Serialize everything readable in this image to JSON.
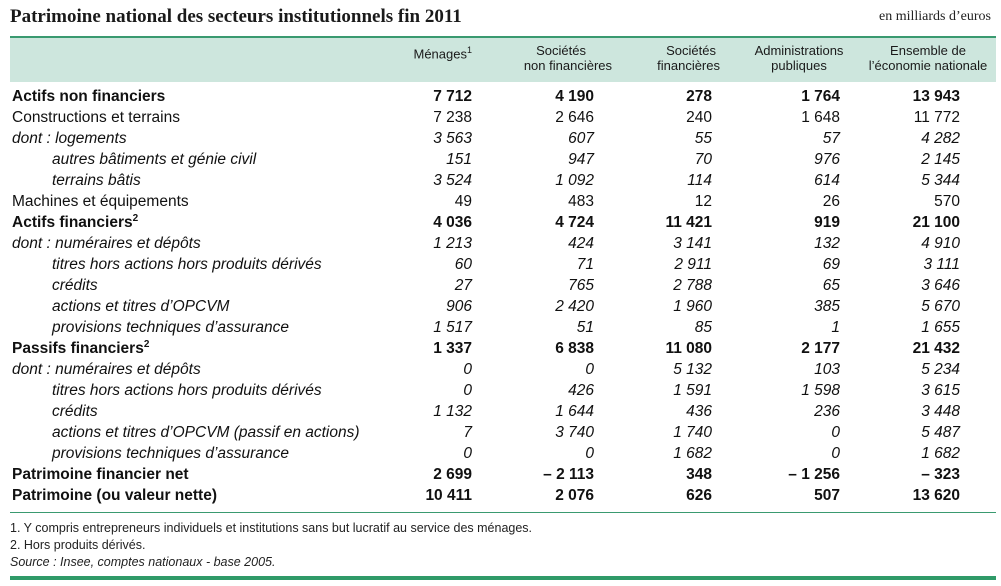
{
  "title": "Patrimoine national des secteurs institutionnels fin 2011",
  "unit": "en milliards d’euros",
  "columns": [
    {
      "l1": "Ménages",
      "sup": "1",
      "l2": ""
    },
    {
      "l1": "Sociétés",
      "sup": "",
      "l2": "non financières"
    },
    {
      "l1": "Sociétés",
      "sup": "",
      "l2": "financières"
    },
    {
      "l1": "Administrations",
      "sup": "",
      "l2": "publiques"
    },
    {
      "l1": "Ensemble de",
      "sup": "",
      "l2": "l’économie nationale"
    }
  ],
  "rows": [
    {
      "label": "Actifs non financiers",
      "sup": "",
      "style": "bold",
      "indent": false,
      "values": [
        "7 712",
        "4 190",
        "278",
        "1 764",
        "13 943"
      ]
    },
    {
      "label": "Constructions et terrains",
      "sup": "",
      "style": "normal",
      "indent": false,
      "values": [
        "7 238",
        "2 646",
        "240",
        "1 648",
        "11 772"
      ]
    },
    {
      "label": "dont : logements",
      "sup": "",
      "style": "italic",
      "indent": false,
      "values": [
        "3 563",
        "607",
        "55",
        "57",
        "4 282"
      ]
    },
    {
      "label": "autres bâtiments et génie civil",
      "sup": "",
      "style": "italic",
      "indent": true,
      "values": [
        "151",
        "947",
        "70",
        "976",
        "2 145"
      ]
    },
    {
      "label": "terrains bâtis",
      "sup": "",
      "style": "italic",
      "indent": true,
      "values": [
        "3 524",
        "1 092",
        "114",
        "614",
        "5 344"
      ]
    },
    {
      "label": "Machines et équipements",
      "sup": "",
      "style": "normal",
      "indent": false,
      "values": [
        "49",
        "483",
        "12",
        "26",
        "570"
      ]
    },
    {
      "label": "Actifs financiers",
      "sup": "2",
      "style": "bold",
      "indent": false,
      "values": [
        "4 036",
        "4 724",
        "11 421",
        "919",
        "21 100"
      ]
    },
    {
      "label": "dont : numéraires et dépôts",
      "sup": "",
      "style": "italic",
      "indent": false,
      "values": [
        "1 213",
        "424",
        "3 141",
        "132",
        "4 910"
      ]
    },
    {
      "label": "titres hors actions hors produits dérivés",
      "sup": "",
      "style": "italic",
      "indent": true,
      "values": [
        "60",
        "71",
        "2 911",
        "69",
        "3 111"
      ]
    },
    {
      "label": "crédits",
      "sup": "",
      "style": "italic",
      "indent": true,
      "values": [
        "27",
        "765",
        "2 788",
        "65",
        "3 646"
      ]
    },
    {
      "label": "actions et titres d’OPCVM",
      "sup": "",
      "style": "italic",
      "indent": true,
      "values": [
        "906",
        "2 420",
        "1 960",
        "385",
        "5 670"
      ]
    },
    {
      "label": "provisions techniques d’assurance",
      "sup": "",
      "style": "italic",
      "indent": true,
      "values": [
        "1 517",
        "51",
        "85",
        "1",
        "1 655"
      ]
    },
    {
      "label": "Passifs financiers",
      "sup": "2",
      "style": "bold",
      "indent": false,
      "values": [
        "1 337",
        "6 838",
        "11 080",
        "2 177",
        "21 432"
      ]
    },
    {
      "label": "dont : numéraires et dépôts",
      "sup": "",
      "style": "italic",
      "indent": false,
      "values": [
        "0",
        "0",
        "5 132",
        "103",
        "5 234"
      ]
    },
    {
      "label": "titres hors actions hors produits dérivés",
      "sup": "",
      "style": "italic",
      "indent": true,
      "values": [
        "0",
        "426",
        "1 591",
        "1 598",
        "3 615"
      ]
    },
    {
      "label": "crédits",
      "sup": "",
      "style": "italic",
      "indent": true,
      "values": [
        "1 132",
        "1 644",
        "436",
        "236",
        "3 448"
      ]
    },
    {
      "label": "actions et titres d’OPCVM (passif en actions)",
      "sup": "",
      "style": "italic",
      "indent": true,
      "values": [
        "7",
        "3 740",
        "1 740",
        "0",
        "5 487"
      ]
    },
    {
      "label": "provisions techniques d’assurance",
      "sup": "",
      "style": "italic",
      "indent": true,
      "values": [
        "0",
        "0",
        "1 682",
        "0",
        "1 682"
      ]
    },
    {
      "label": "Patrimoine financier net",
      "sup": "",
      "style": "bold",
      "indent": false,
      "values": [
        "2 699",
        "– 2 113",
        "348",
        "– 1 256",
        "– 323"
      ]
    },
    {
      "label": "Patrimoine (ou valeur nette)",
      "sup": "",
      "style": "bold",
      "indent": false,
      "values": [
        "10 411",
        "2 076",
        "626",
        "507",
        "13 620"
      ]
    }
  ],
  "notes": [
    "1. Y compris entrepreneurs individuels et institutions sans but lucratif au service des ménages.",
    "2. Hors produits dérivés."
  ],
  "source": "Source : Insee, comptes nationaux - base 2005."
}
